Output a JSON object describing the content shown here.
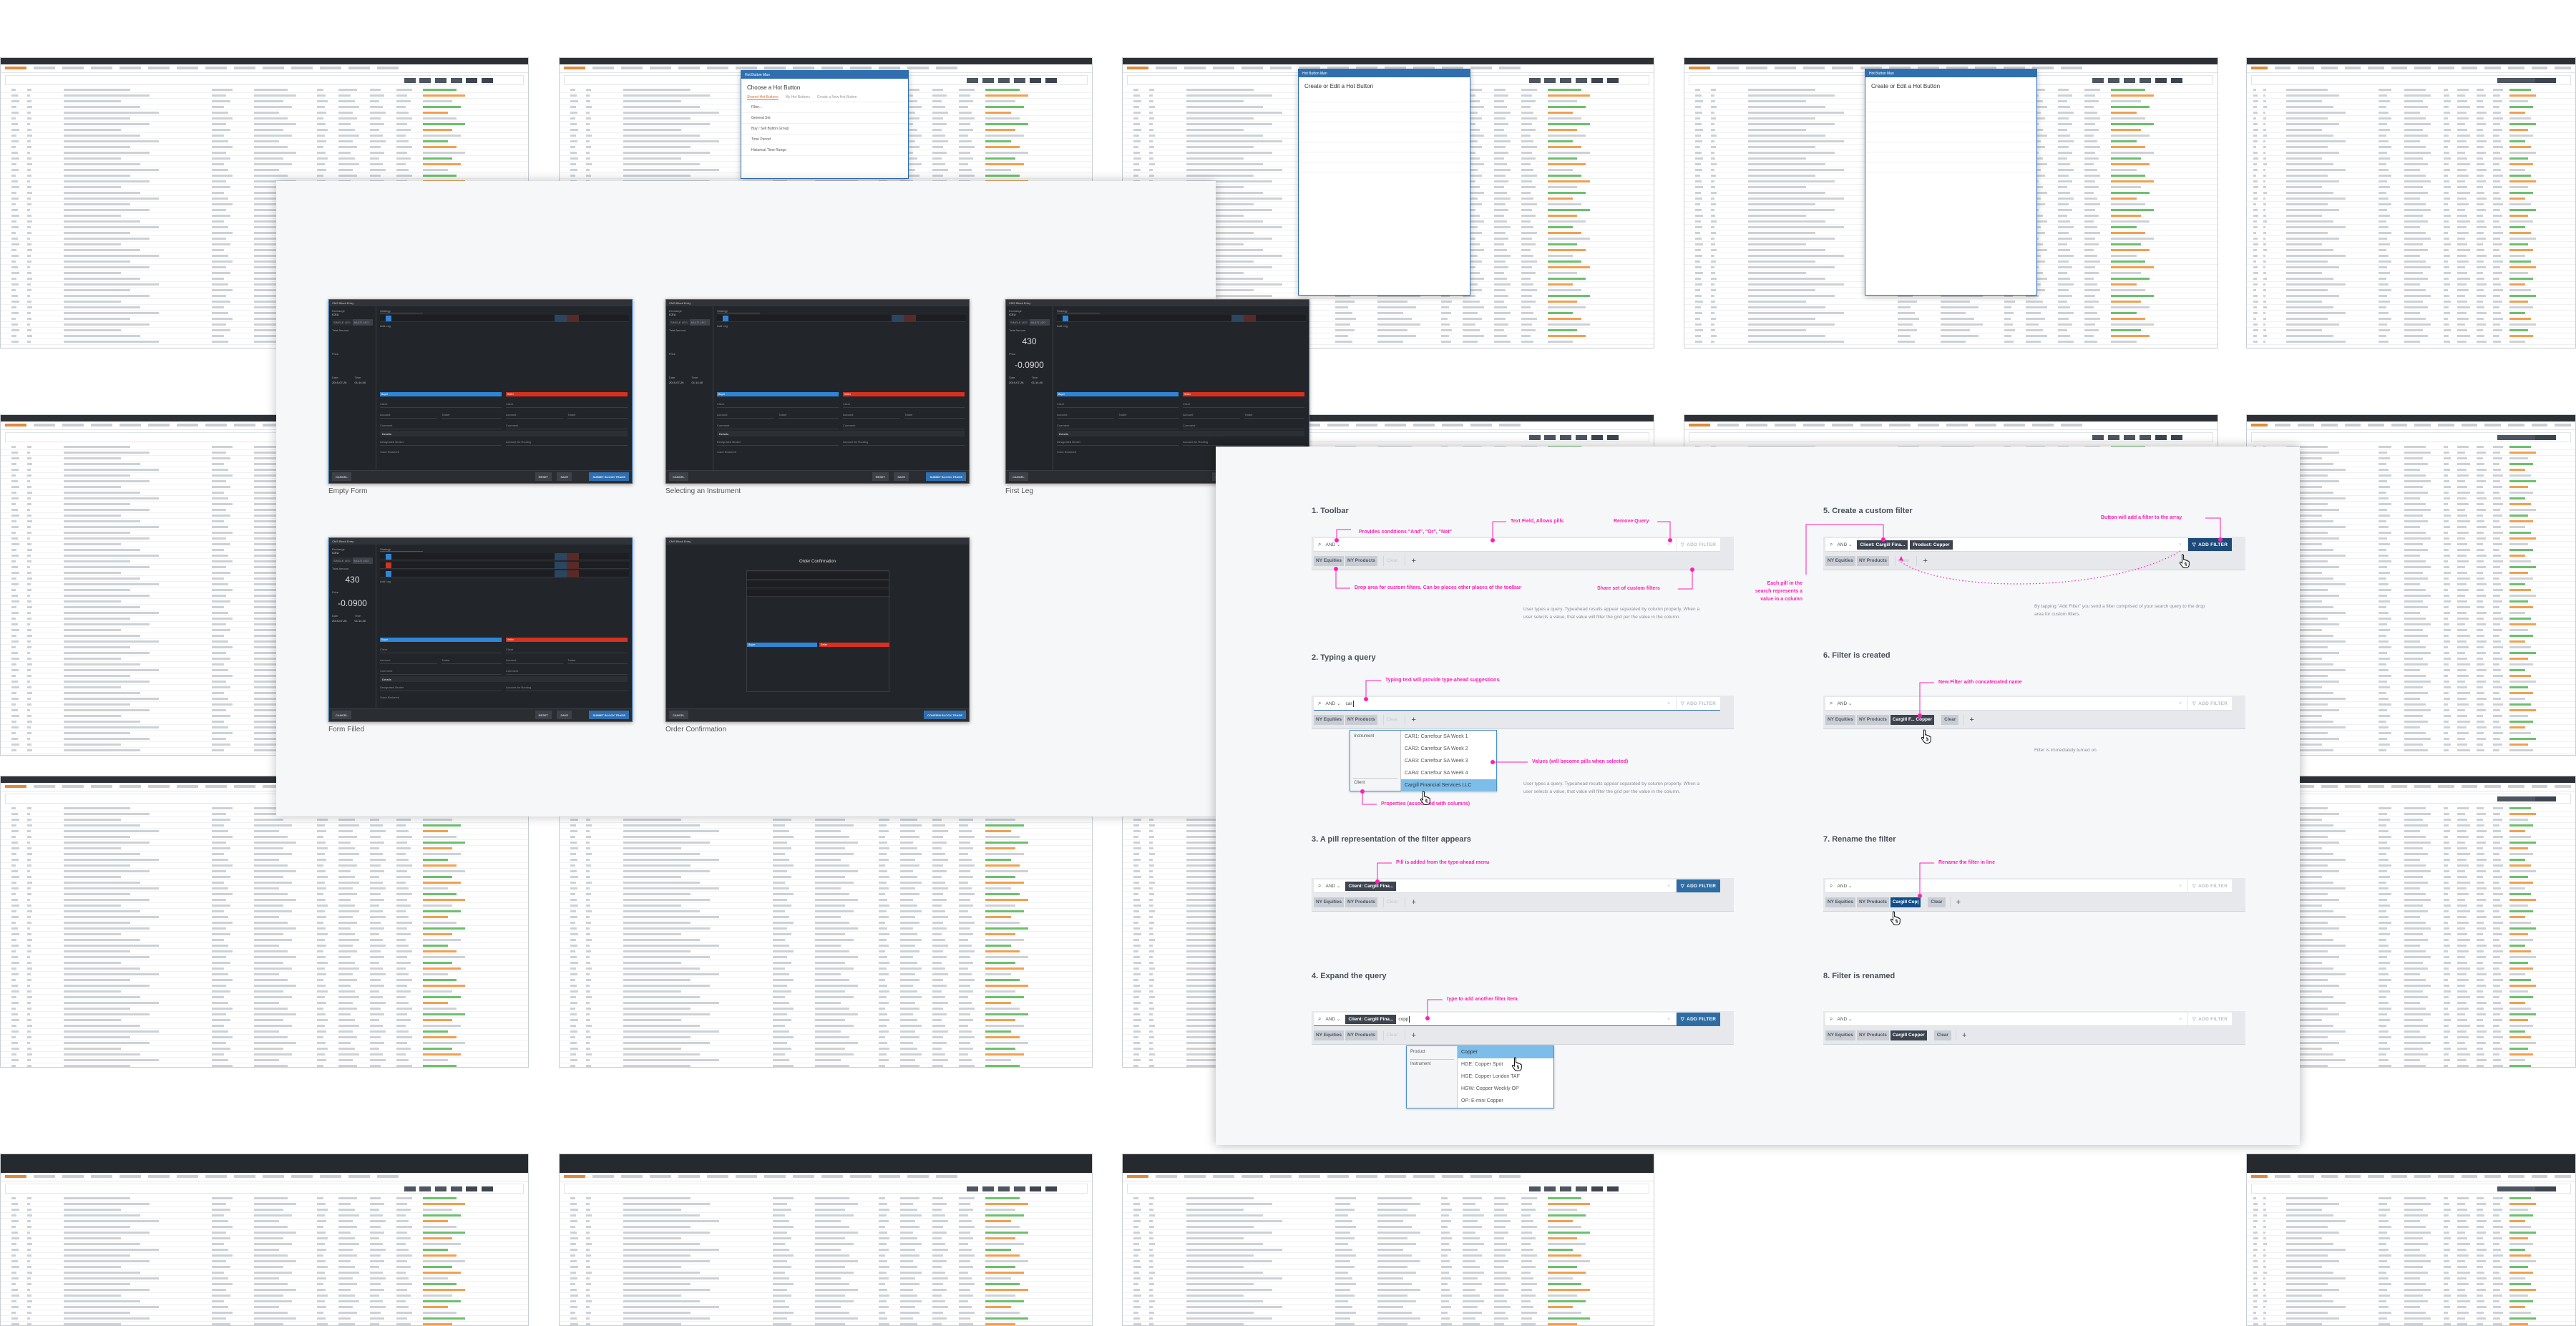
{
  "center_panel": {
    "screens": [
      {
        "caption": "Empty Form",
        "title": "CMS Block Entry",
        "amount": "",
        "price": "",
        "legs": 1
      },
      {
        "caption": "Selecting an Instrument",
        "title": "CMS Block Entry",
        "amount": "",
        "price": "",
        "legs": 1
      },
      {
        "caption": "First Leg",
        "title": "CMS Block Entry",
        "amount": "430",
        "price": "-0.0900",
        "legs": 1
      },
      {
        "caption": "Form Filled",
        "title": "CMS Block Entry",
        "amount": "430",
        "price": "-0.0900",
        "legs": 3
      },
      {
        "caption": "Order Confirmation",
        "title": "CMS Block Entry",
        "confirm_heading": "Order Confirmation",
        "legs": 3
      }
    ],
    "form_labels": {
      "exchange": "Exchange",
      "exchange_value": "ICEU",
      "trade_type": "Trade Type",
      "trade_type_value": "Block",
      "single_leg": "SINGLE LEG",
      "multi_leg": "MULTI LEG",
      "total_amount": "Total Amount",
      "price": "Price",
      "date": "Date",
      "date_value": "2019-07-26",
      "time": "Time",
      "time_value": "01:14:40",
      "strategy": "Strategy",
      "save_small": "SAVE",
      "add_leg": "Add Leg",
      "buyer": "Buyer",
      "seller": "Seller",
      "client": "Client",
      "account": "Account",
      "trader": "Trader",
      "comment": "Comment",
      "details": "Details",
      "designated_broker": "Designated Broker",
      "account_routing": "Account for Routing",
      "voice_brokered": "Voice Brokered",
      "cancel": "CANCEL",
      "reset": "RESET",
      "save": "SAVE",
      "submit": "SUBMIT BLOCK TRADE",
      "confirm": "CONFIRM BLOCK TRADE"
    }
  },
  "hot_button_dialog": {
    "window_title": "Hot Button Man",
    "heading": "Choose a Hot Button",
    "tabs": [
      "Shared Hot Buttons",
      "My Hot Buttons",
      "Create a New Hot Button"
    ],
    "filter_placeholder": "Filter...",
    "group": "General Set",
    "items": [
      "Buy / Sell Button Group",
      "Time Period",
      "Historical Time Range"
    ]
  },
  "edit_dialog": {
    "heading": "Create or Edit a Hot Button"
  },
  "spec": {
    "colors": {
      "annotation": "#ff1fb4",
      "add_filter_active": "#2e6da4",
      "add_filter_pressed": "#1d4a78",
      "pill_dark": "#3d4450",
      "pill_editing": "#0e4f8b",
      "highlight": "#7dbdea"
    },
    "sections": [
      {
        "title": "1. Toolbar",
        "toolbar": {
          "and": "AND",
          "query_pills": [],
          "typed": "",
          "add_filter": "ADD FILTER",
          "add_state": "disabled",
          "saved": [
            {
              "label": "NY Equities",
              "style": "normal"
            },
            {
              "label": "NY Products",
              "style": "normal"
            }
          ],
          "clear": "Clear",
          "clear_state": "disabled"
        },
        "note": "User types a query. Typeahead results appear separated by column property.  When a user selects a value, that value will filter the grid per the value in the column."
      },
      {
        "title": "2. Typing a query",
        "toolbar": {
          "and": "AND",
          "query_pills": [],
          "typed": "car",
          "add_filter": "ADD FILTER",
          "add_state": "disabled",
          "saved": [
            {
              "label": "NY Equities",
              "style": "normal"
            },
            {
              "label": "NY Products",
              "style": "normal"
            }
          ],
          "clear": "Clear",
          "clear_state": "disabled"
        },
        "dropdown": {
          "properties": [
            "Instrument",
            "Client"
          ],
          "values": [
            "CAR1: Carrefour SA Week 1",
            "CAR2: Carrefour SA Week 2",
            "CAR3: Carrefour SA Week 3",
            "CAR4: Carrefour SA Week 4",
            "Cargill Financial Services LLC"
          ],
          "highlighted": 4
        },
        "note": "User types a query. Typeahead results appear separated by column property.  When a user selects a value, that value will filter the grid per the value in the column."
      },
      {
        "title": "3. A pill representation of the filter appears",
        "toolbar": {
          "and": "AND",
          "query_pills": [
            "Client: Cargill Fina..."
          ],
          "typed": "",
          "add_filter": "ADD FILTER",
          "add_state": "active",
          "saved": [
            {
              "label": "NY Equities",
              "style": "normal"
            },
            {
              "label": "NY Products",
              "style": "normal"
            }
          ],
          "clear": "Clear",
          "clear_state": "disabled"
        }
      },
      {
        "title": "4. Expand the query",
        "toolbar": {
          "and": "AND",
          "query_pills": [
            "Client: Cargill Fina..."
          ],
          "typed": "copp",
          "add_filter": "ADD FILTER",
          "add_state": "active",
          "saved": [
            {
              "label": "NY Equities",
              "style": "normal"
            },
            {
              "label": "NY Products",
              "style": "normal"
            }
          ],
          "clear": "Clear",
          "clear_state": "disabled"
        },
        "dropdown": {
          "properties": [
            "Product",
            "Instrument"
          ],
          "values": [
            "Copper",
            "HGE: Copper Spot",
            "HGE: Copper London TAF",
            "HGW: Copper Weekly OP",
            "OP: E-mini Copper"
          ],
          "highlighted": 0
        }
      },
      {
        "title": "5. Create a custom filter",
        "toolbar": {
          "and": "AND",
          "query_pills": [
            "Client: Cargill Fina...",
            "Product: Copper"
          ],
          "typed": "",
          "add_filter": "ADD FILTER",
          "add_state": "pressed",
          "saved": [
            {
              "label": "NY Equities",
              "style": "normal"
            },
            {
              "label": "NY Products",
              "style": "normal"
            }
          ],
          "clear": "Clear",
          "clear_state": "disabled"
        },
        "note": "By tapping \"Add Filter\" you send a filter comprised of your search query to the drop area for custom filters."
      },
      {
        "title": "6. Filter is created",
        "toolbar": {
          "and": "AND",
          "query_pills": [],
          "typed": "",
          "add_filter": "ADD FILTER",
          "add_state": "disabled",
          "saved": [
            {
              "label": "NY Equities",
              "style": "normal"
            },
            {
              "label": "NY Products",
              "style": "normal"
            },
            {
              "label": "Cargill F... Copper",
              "style": "dark"
            }
          ],
          "clear": "Clear",
          "clear_state": "active"
        },
        "note": "Filter is immediately turned on"
      },
      {
        "title": "7. Rename the filter",
        "toolbar": {
          "and": "AND",
          "query_pills": [],
          "typed": "",
          "add_filter": "ADD FILTER",
          "add_state": "disabled",
          "saved": [
            {
              "label": "NY Equities",
              "style": "normal"
            },
            {
              "label": "NY Products",
              "style": "normal"
            },
            {
              "label": "Cargill Cop|",
              "style": "edit"
            }
          ],
          "clear": "Clear",
          "clear_state": "active"
        }
      },
      {
        "title": "8. Filter is renamed",
        "toolbar": {
          "and": "AND",
          "query_pills": [],
          "typed": "",
          "add_filter": "ADD FILTER",
          "add_state": "disabled",
          "saved": [
            {
              "label": "NY Equities",
              "style": "normal"
            },
            {
              "label": "NY Products",
              "style": "normal"
            },
            {
              "label": "Cargill Copper",
              "style": "dark"
            }
          ],
          "clear": "Clear",
          "clear_state": "active"
        }
      }
    ],
    "annotations": {
      "conditions": "Provides conditions \"And\", \"Or\", \"Not\"",
      "text_field": "Text Field, Allows pills",
      "remove_query": "Remove Query",
      "drop_area": "Drop area for custom filters. Can be places other places of the toolbar",
      "share_set": "Share set of custom filters",
      "each_pill": [
        "Each pill in the",
        "search represents a",
        "value in a column"
      ],
      "typing_text": "Typing text will provide type-ahead suggestions",
      "values": "Values (will become pills when selected)",
      "properties": "Properties (associated with columns)",
      "pill_added": "Pill is added from the type-ahead menu",
      "type_to_add": "type to add another filter item.",
      "button_add": "Button will add a filter to the array",
      "new_filter": "New Filter with concatenated name",
      "rename_inline": "Rename the filter in line"
    }
  }
}
